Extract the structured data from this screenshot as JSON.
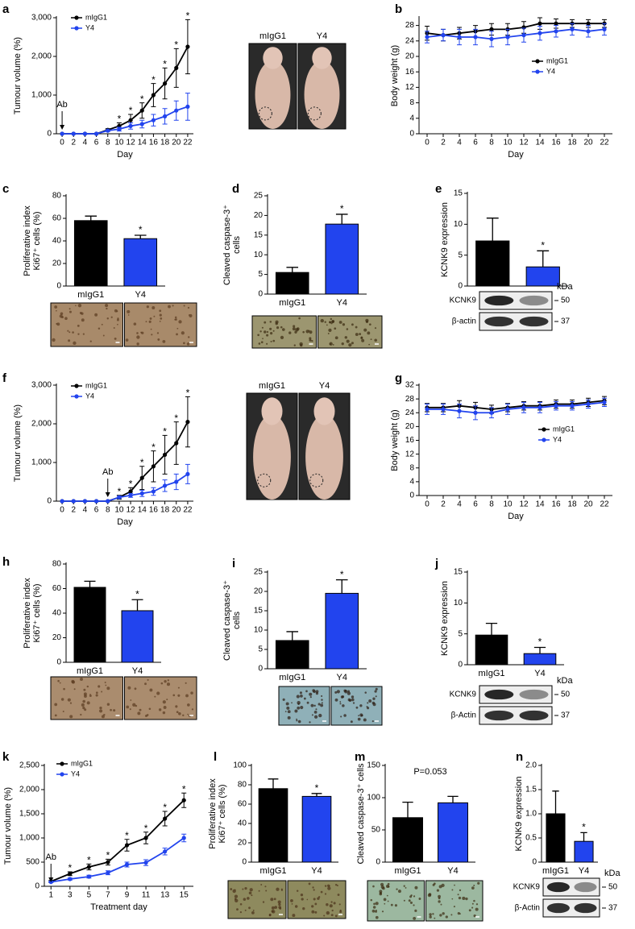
{
  "chart_data": [
    {
      "panel": "a",
      "type": "line",
      "ylabel": "Tumour volume (%)",
      "xlabel": "Day",
      "x": [
        0,
        2,
        4,
        6,
        8,
        10,
        12,
        14,
        16,
        18,
        20,
        22
      ],
      "xlim": [
        -1,
        23
      ],
      "xticks": [
        0,
        2,
        4,
        6,
        8,
        10,
        12,
        14,
        16,
        18,
        20,
        22
      ],
      "ylim": [
        0,
        3000
      ],
      "yticks": [
        0,
        {
          "value": 1000,
          "label": "1,000"
        },
        {
          "value": 2000,
          "label": "2,000"
        },
        {
          "value": 3000,
          "label": "3,000"
        }
      ],
      "series": [
        {
          "name": "mIgG1",
          "color": "#000000",
          "values": [
            0,
            0,
            0,
            0,
            100,
            200,
            350,
            600,
            1000,
            1300,
            1700,
            2250
          ],
          "errors": [
            0,
            0,
            0,
            0,
            30,
            80,
            150,
            200,
            300,
            400,
            500,
            700
          ]
        },
        {
          "name": "Y4",
          "color": "#2244ee",
          "values": [
            0,
            0,
            0,
            0,
            80,
            120,
            200,
            250,
            350,
            450,
            600,
            700
          ],
          "errors": [
            0,
            0,
            0,
            0,
            20,
            50,
            80,
            100,
            150,
            200,
            250,
            350
          ]
        }
      ],
      "legend": "upper-left",
      "significance": {
        "label": "*",
        "at": [
          10,
          12,
          14,
          16,
          18,
          20,
          22
        ]
      },
      "arrow": {
        "text": "Ab",
        "x": 0
      },
      "photo_labels": [
        "mIgG1",
        "Y4"
      ]
    },
    {
      "panel": "b",
      "type": "line",
      "ylabel": "Body weight (g)",
      "xlabel": "Day",
      "x": [
        0,
        2,
        4,
        6,
        8,
        10,
        12,
        14,
        16,
        18,
        20,
        22
      ],
      "xlim": [
        -1,
        23
      ],
      "xticks": [
        0,
        2,
        4,
        6,
        8,
        10,
        12,
        14,
        16,
        18,
        20,
        22
      ],
      "ylim": [
        0,
        30
      ],
      "yticks": [
        0,
        4,
        8,
        12,
        16,
        20,
        24,
        28
      ],
      "series": [
        {
          "name": "mIgG1",
          "color": "#000000",
          "values": [
            26,
            25.5,
            26,
            26.5,
            27,
            27,
            27.5,
            28.5,
            28.5,
            28.5,
            28.5,
            28.5
          ],
          "errors": [
            1.8,
            1.5,
            1.5,
            1.5,
            1.5,
            1.5,
            1.5,
            1.5,
            1.2,
            1,
            1,
            1
          ]
        },
        {
          "name": "Y4",
          "color": "#2244ee",
          "values": [
            25,
            25.5,
            25,
            25,
            24.5,
            25,
            25.5,
            26,
            26.5,
            27,
            26.5,
            27
          ],
          "errors": [
            1.5,
            1.5,
            2,
            2,
            2,
            2,
            1.8,
            1.8,
            1.5,
            1.5,
            1.5,
            1.5
          ]
        }
      ],
      "legend": "right"
    },
    {
      "panel": "c",
      "type": "bar",
      "ylabel": [
        "Proliferative index",
        "Ki67⁺ cells (%)"
      ],
      "categories": [
        "mIgG1",
        "Y4"
      ],
      "colors": [
        "#000000",
        "#2244ee"
      ],
      "values": [
        58,
        42
      ],
      "errors": [
        4,
        3
      ],
      "ylim": [
        0,
        80
      ],
      "yticks": [
        0,
        20,
        40,
        60,
        80
      ],
      "significance": {
        "label": "*",
        "at": [
          1
        ]
      }
    },
    {
      "panel": "d",
      "type": "bar",
      "ylabel": [
        "Cleaved caspase-3⁺",
        "cells"
      ],
      "categories": [
        "mIgG1",
        "Y4"
      ],
      "colors": [
        "#000000",
        "#2244ee"
      ],
      "values": [
        5.5,
        17.8
      ],
      "errors": [
        1.3,
        2.5
      ],
      "ylim": [
        0,
        25
      ],
      "yticks": [
        0,
        5,
        10,
        15,
        20,
        25
      ],
      "significance": {
        "label": "*",
        "at": [
          1
        ]
      }
    },
    {
      "panel": "e",
      "type": "bar",
      "ylabel": "KCNK9 expression",
      "categories": [
        "mIgG1",
        "Y4"
      ],
      "colors": [
        "#000000",
        "#2244ee"
      ],
      "values": [
        7.3,
        3.1
      ],
      "errors": [
        3.7,
        2.6
      ],
      "ylim": [
        0,
        15
      ],
      "yticks": [
        0,
        5,
        10,
        15
      ],
      "significance": {
        "label": "*",
        "at": [
          1
        ]
      },
      "blot": {
        "rows": [
          "KCNK9",
          "β-actin"
        ],
        "unit": "kDa",
        "markers": [
          50,
          37
        ]
      }
    },
    {
      "panel": "f",
      "type": "line",
      "ylabel": "Tumour volume (%)",
      "xlabel": "Day",
      "x": [
        0,
        2,
        4,
        6,
        8,
        10,
        12,
        14,
        16,
        18,
        20,
        22
      ],
      "xlim": [
        -1,
        23
      ],
      "xticks": [
        0,
        2,
        4,
        6,
        8,
        10,
        12,
        14,
        16,
        18,
        20,
        22
      ],
      "ylim": [
        0,
        3000
      ],
      "yticks": [
        0,
        {
          "value": 1000,
          "label": "1,000"
        },
        {
          "value": 2000,
          "label": "2,000"
        },
        {
          "value": 3000,
          "label": "3,000"
        }
      ],
      "series": [
        {
          "name": "mIgG1",
          "color": "#000000",
          "values": [
            0,
            0,
            0,
            0,
            0,
            100,
            250,
            600,
            900,
            1200,
            1500,
            2050
          ],
          "errors": [
            0,
            0,
            0,
            0,
            0,
            50,
            100,
            300,
            400,
            500,
            550,
            650
          ]
        },
        {
          "name": "Y4",
          "color": "#2244ee",
          "values": [
            0,
            0,
            0,
            0,
            0,
            100,
            150,
            200,
            250,
            400,
            500,
            700
          ],
          "errors": [
            0,
            0,
            0,
            0,
            0,
            30,
            50,
            80,
            100,
            150,
            200,
            250
          ]
        }
      ],
      "legend": "upper-left",
      "significance": {
        "label": "*",
        "at": [
          10,
          12,
          14,
          16,
          18,
          20,
          22
        ]
      },
      "arrow": {
        "text": "Ab",
        "x": 8
      },
      "photo_labels": [
        "mIgG1",
        "Y4"
      ]
    },
    {
      "panel": "g",
      "type": "line",
      "ylabel": "Body weight (g)",
      "xlabel": "Day",
      "x": [
        0,
        2,
        4,
        6,
        8,
        10,
        12,
        14,
        16,
        18,
        20,
        22
      ],
      "xlim": [
        -1,
        23
      ],
      "xticks": [
        0,
        2,
        4,
        6,
        8,
        10,
        12,
        14,
        16,
        18,
        20,
        22
      ],
      "ylim": [
        0,
        32
      ],
      "yticks": [
        0,
        4,
        8,
        12,
        16,
        20,
        24,
        28,
        32
      ],
      "series": [
        {
          "name": "mIgG1",
          "color": "#000000",
          "values": [
            25.5,
            25.5,
            26,
            25.5,
            25,
            25.5,
            26,
            26,
            26.5,
            26.5,
            27,
            27.5
          ],
          "errors": [
            1.2,
            1.2,
            1.5,
            1.5,
            1.2,
            1.2,
            1.2,
            1.2,
            1.2,
            1.2,
            1.2,
            1.2
          ]
        },
        {
          "name": "Y4",
          "color": "#2244ee",
          "values": [
            25,
            25,
            24.5,
            24,
            24,
            25,
            25.5,
            25.5,
            26,
            26,
            26.5,
            27
          ],
          "errors": [
            1.5,
            1.5,
            2,
            2,
            1.5,
            1.5,
            1.5,
            1.5,
            1.2,
            1.2,
            1.2,
            1.2
          ]
        }
      ],
      "legend": "right"
    },
    {
      "panel": "h",
      "type": "bar",
      "ylabel": [
        "Proliferative index",
        "Ki67⁺ cells (%)"
      ],
      "categories": [
        "mIgG1",
        "Y4"
      ],
      "colors": [
        "#000000",
        "#2244ee"
      ],
      "values": [
        61,
        42
      ],
      "errors": [
        5,
        9
      ],
      "ylim": [
        0,
        80
      ],
      "yticks": [
        0,
        20,
        40,
        60,
        80
      ],
      "significance": {
        "label": "*",
        "at": [
          1
        ]
      }
    },
    {
      "panel": "i",
      "type": "bar",
      "ylabel": [
        "Cleaved caspase-3⁺",
        "cells"
      ],
      "categories": [
        "mIgG1",
        "Y4"
      ],
      "colors": [
        "#000000",
        "#2244ee"
      ],
      "values": [
        7.3,
        19.5
      ],
      "errors": [
        2.3,
        3.5
      ],
      "ylim": [
        0,
        25
      ],
      "yticks": [
        0,
        5,
        10,
        15,
        20,
        25
      ],
      "significance": {
        "label": "*",
        "at": [
          1
        ]
      }
    },
    {
      "panel": "j",
      "type": "bar",
      "ylabel": "KCNK9 expression",
      "categories": [
        "mIgG1",
        "Y4"
      ],
      "colors": [
        "#000000",
        "#2244ee"
      ],
      "values": [
        4.8,
        1.8
      ],
      "errors": [
        1.9,
        1.0
      ],
      "ylim": [
        0,
        15
      ],
      "yticks": [
        0,
        5,
        10,
        15
      ],
      "significance": {
        "label": "*",
        "at": [
          1
        ]
      },
      "blot": {
        "rows": [
          "KCNK9",
          "β-Actin"
        ],
        "unit": "kDa",
        "markers": [
          50,
          37
        ]
      }
    },
    {
      "panel": "k",
      "type": "line",
      "ylabel": "Tumour volume (%)",
      "xlabel": "Treatment day",
      "x": [
        1,
        3,
        5,
        7,
        9,
        11,
        13,
        15
      ],
      "xlim": [
        0.3,
        16
      ],
      "xticks": [
        1,
        3,
        5,
        7,
        9,
        11,
        13,
        15
      ],
      "ylim": [
        0,
        2500
      ],
      "yticks": [
        0,
        500,
        {
          "value": 1000,
          "label": "1,000"
        },
        {
          "value": 1500,
          "label": "1,500"
        },
        {
          "value": 2000,
          "label": "2,000"
        },
        {
          "value": 2500,
          "label": "2,500"
        }
      ],
      "series": [
        {
          "name": "mIgG1",
          "color": "#000000",
          "values": [
            100,
            260,
            400,
            500,
            850,
            1000,
            1400,
            1780
          ],
          "errors": [
            20,
            40,
            60,
            60,
            120,
            120,
            150,
            150
          ]
        },
        {
          "name": "Y4",
          "color": "#2244ee",
          "values": [
            90,
            150,
            200,
            280,
            450,
            490,
            720,
            1000
          ],
          "errors": [
            10,
            20,
            30,
            40,
            50,
            60,
            70,
            80
          ]
        }
      ],
      "legend": "upper-left",
      "significance": {
        "label": "*",
        "at": [
          3,
          5,
          7,
          9,
          11,
          13,
          15
        ]
      },
      "arrow": {
        "text": "Ab",
        "x": 1
      }
    },
    {
      "panel": "l",
      "type": "bar",
      "ylabel": [
        "Proliferative index",
        "Ki67⁺ cells (%)"
      ],
      "categories": [
        "mIgG1",
        "Y4"
      ],
      "colors": [
        "#000000",
        "#2244ee"
      ],
      "values": [
        76,
        68
      ],
      "errors": [
        10,
        3
      ],
      "ylim": [
        0,
        100
      ],
      "yticks": [
        0,
        20,
        40,
        60,
        80,
        100
      ],
      "significance": {
        "label": "*",
        "at": [
          1
        ]
      }
    },
    {
      "panel": "m",
      "type": "bar",
      "ylabel": "Cleaved caspase-3⁺ cells",
      "categories": [
        "mIgG1",
        "Y4"
      ],
      "colors": [
        "#000000",
        "#2244ee"
      ],
      "values": [
        69,
        92
      ],
      "errors": [
        24,
        10
      ],
      "ylim": [
        0,
        150
      ],
      "yticks": [
        0,
        50,
        100,
        150
      ],
      "annotation": "P=0.053"
    },
    {
      "panel": "n",
      "type": "bar",
      "ylabel": "KCNK9 expression",
      "categories": [
        "mIgG1",
        "Y4"
      ],
      "colors": [
        "#000000",
        "#2244ee"
      ],
      "values": [
        1.0,
        0.43
      ],
      "errors": [
        0.47,
        0.18
      ],
      "ylim": [
        0,
        2
      ],
      "yticks": [
        0,
        0.5,
        {
          "value": 1,
          "label": "1.0"
        },
        1.5,
        {
          "value": 2,
          "label": "2.0"
        }
      ],
      "significance": {
        "label": "*",
        "at": [
          1
        ]
      },
      "blot": {
        "rows": [
          "KCNK9",
          "β-Actin"
        ],
        "unit": "kDa",
        "markers": [
          50,
          37
        ]
      }
    }
  ]
}
